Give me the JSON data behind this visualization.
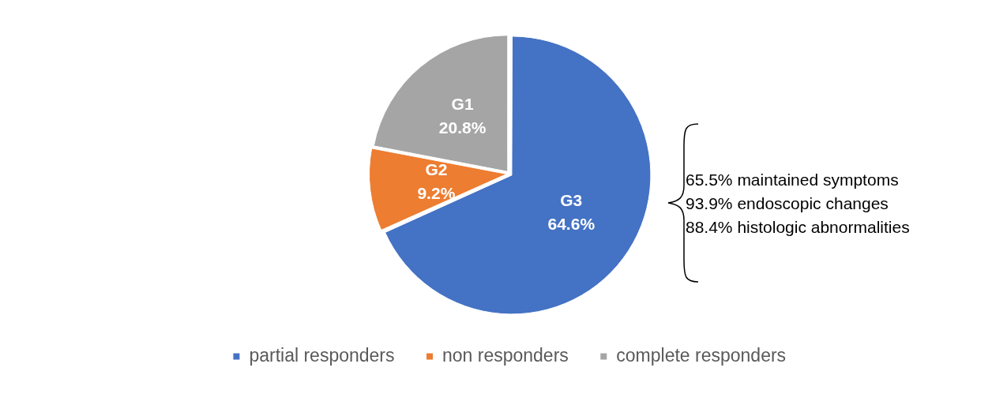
{
  "chart_data": {
    "type": "pie",
    "categories": [
      "partial responders",
      "non responders",
      "complete responders"
    ],
    "values": [
      64.6,
      9.2,
      20.8
    ],
    "colors": [
      "#4472c4",
      "#ed7d31",
      "#a5a5a5"
    ],
    "value_labels": [
      "G3\n64.6%",
      "G2\n9.2%",
      "G1\n20.8%"
    ],
    "annotations": [
      "65.5% maintained symptoms",
      "93.9% endoscopic changes",
      "88.4% histologic abnormalities"
    ],
    "legend": "bottom"
  }
}
